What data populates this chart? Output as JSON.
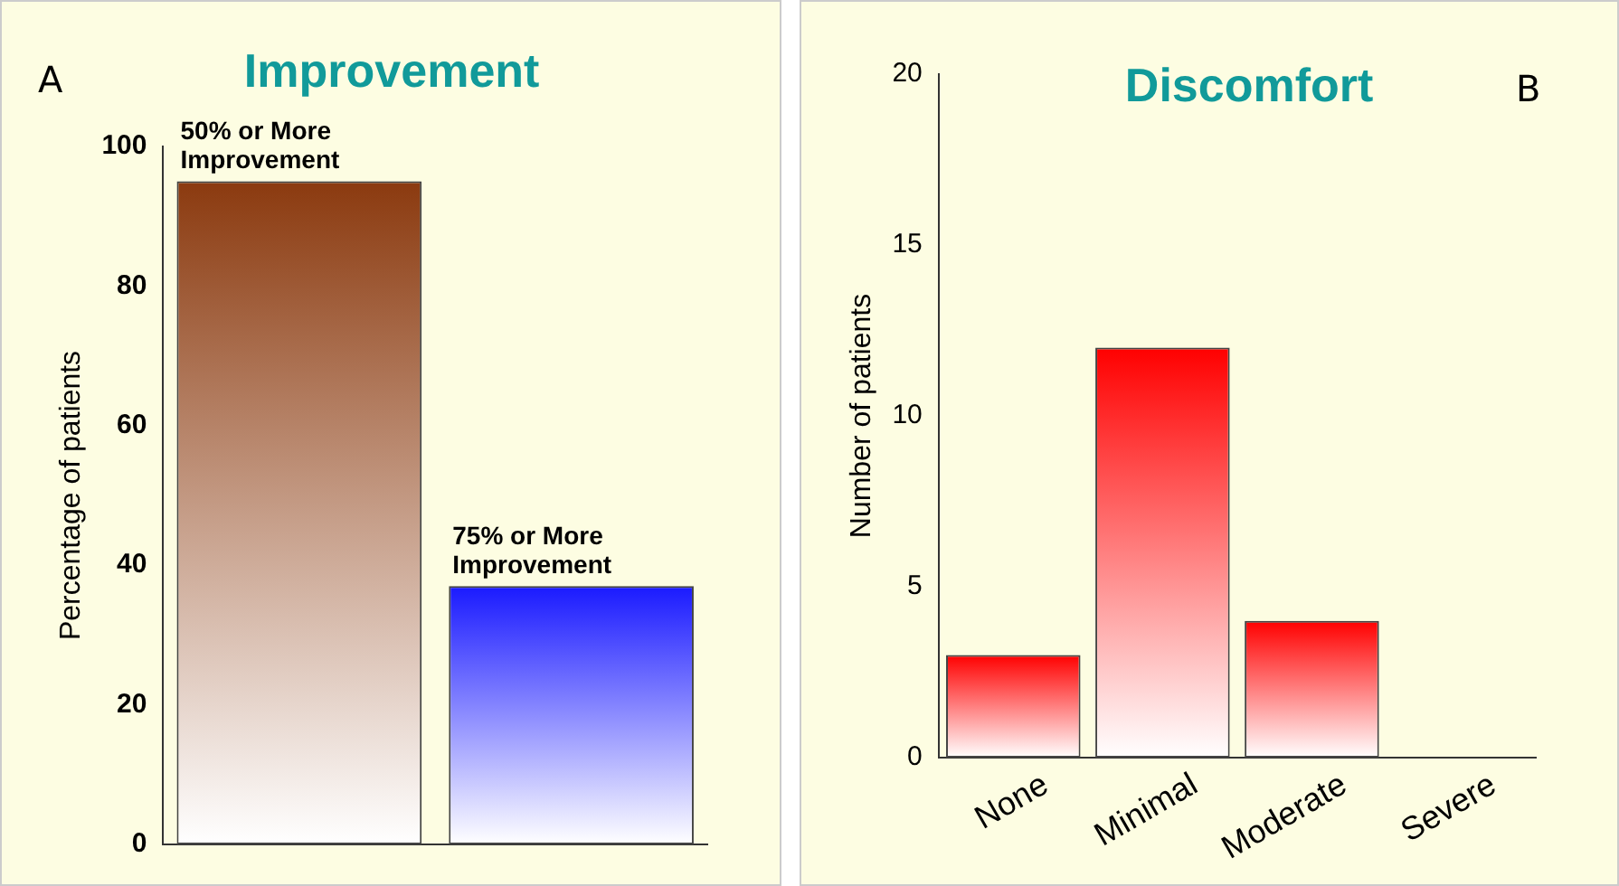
{
  "chart_data": [
    {
      "type": "bar",
      "title": "Improvement",
      "ylabel": "Percentage of patients",
      "categories": [
        "50% or More Improvement",
        "75% or More Improvement"
      ],
      "values": [
        95,
        37
      ],
      "colors": [
        "#8b3a0f",
        "#1a1aff"
      ],
      "ylim": [
        0,
        100
      ],
      "yticks": [
        0,
        20,
        40,
        60,
        80,
        100
      ],
      "grid": false,
      "legend": false,
      "annotations": [
        "A"
      ]
    },
    {
      "type": "bar",
      "title": "Discomfort",
      "ylabel": "Number of patients",
      "categories": [
        "None",
        "Minimal",
        "Moderate",
        "Severe"
      ],
      "values": [
        3,
        12,
        4,
        0
      ],
      "color": "#ff0000",
      "ylim": [
        0,
        20
      ],
      "yticks": [
        0,
        5,
        10,
        15,
        20
      ],
      "grid": false,
      "legend": false,
      "annotations": [
        "B"
      ]
    }
  ]
}
